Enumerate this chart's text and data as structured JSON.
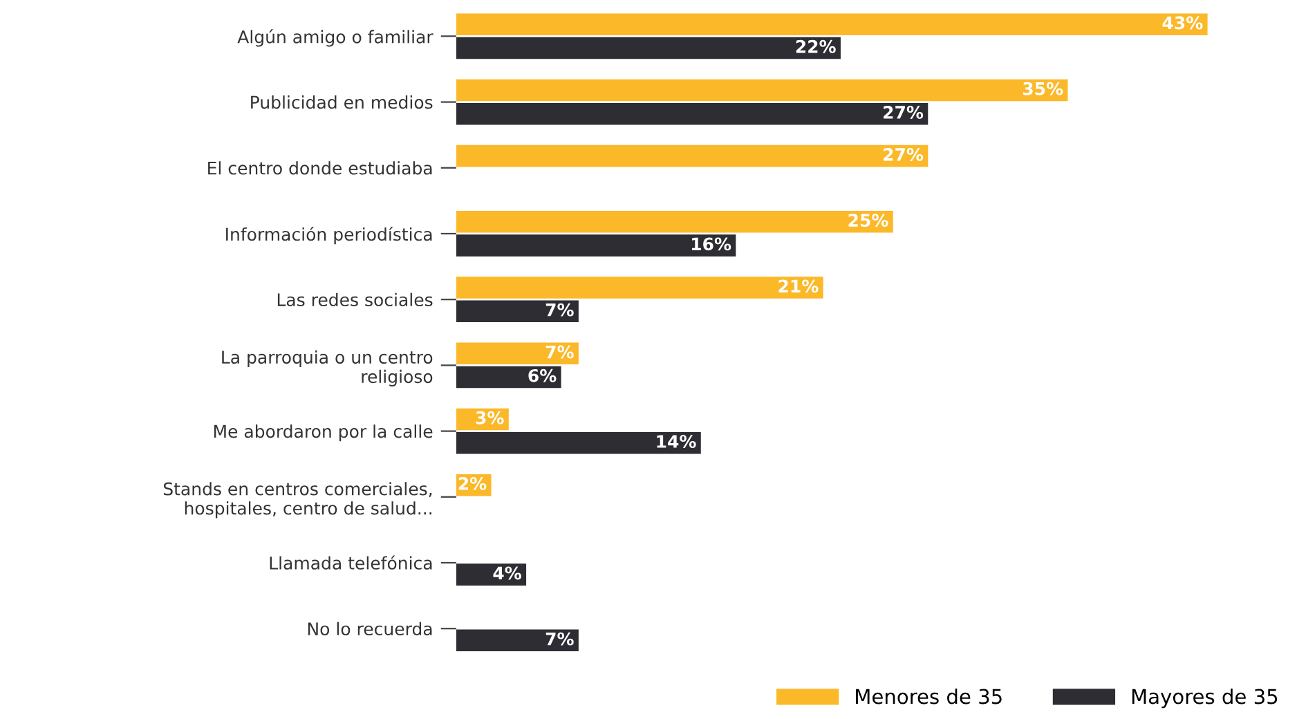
{
  "chart_data": {
    "type": "bar",
    "orientation": "horizontal",
    "legend": "bottom right",
    "grid": false,
    "categories": [
      "Algún amigo o familiar",
      "Publicidad en medios",
      "El centro donde estudiaba",
      "Información periodística",
      "Las redes sociales",
      "La parroquia o un centro\nreligioso",
      "Me abordaron por la calle",
      "Stands en centros comerciales,\nhospitales, centro de salud...",
      "Llamada telefónica",
      "No lo recuerda"
    ],
    "series": [
      {
        "name": "Menores de 35",
        "color": "#fbb829",
        "values": [
          43,
          35,
          27,
          25,
          21,
          7,
          3,
          2,
          null,
          null
        ],
        "value_labels": [
          "43%",
          "35%",
          "27%",
          "25%",
          "21%",
          "7%",
          "3%",
          "2%",
          null,
          null
        ]
      },
      {
        "name": "Mayores de 35",
        "color": "#2d2d33",
        "values": [
          22,
          27,
          null,
          16,
          7,
          6,
          14,
          null,
          4,
          7
        ],
        "value_labels": [
          "22%",
          "27%",
          null,
          "16%",
          "7%",
          "6%",
          "14%",
          null,
          "4%",
          "7%"
        ]
      }
    ]
  }
}
